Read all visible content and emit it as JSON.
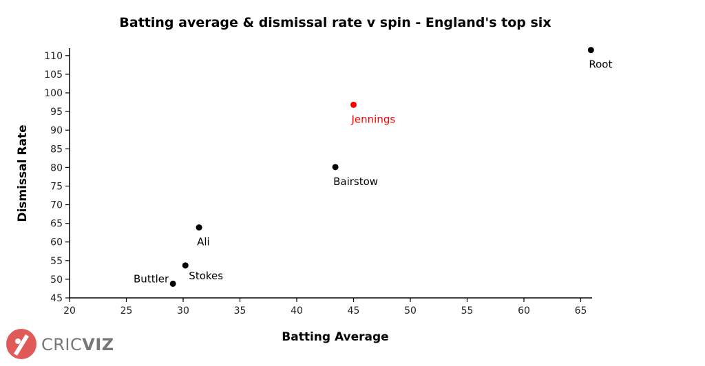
{
  "chart_data": {
    "type": "scatter",
    "title": "Batting average & dismissal rate v spin - England's top six",
    "xlabel": "Batting Average",
    "ylabel": "Dismissal Rate",
    "xlim": [
      20,
      66
    ],
    "ylim": [
      45,
      112
    ],
    "xticks": [
      20,
      25,
      30,
      35,
      40,
      45,
      50,
      55,
      60,
      65
    ],
    "yticks": [
      45,
      50,
      55,
      60,
      65,
      70,
      75,
      80,
      85,
      90,
      95,
      100,
      105,
      110
    ],
    "grid": false,
    "points": [
      {
        "label": "Root",
        "x": 65.9,
        "y": 111.5,
        "color": "#000000"
      },
      {
        "label": "Jennings",
        "x": 45.0,
        "y": 96.8,
        "color": "#ff0000"
      },
      {
        "label": "Bairstow",
        "x": 43.4,
        "y": 80.1,
        "color": "#000000"
      },
      {
        "label": "Ali",
        "x": 31.4,
        "y": 63.9,
        "color": "#000000"
      },
      {
        "label": "Stokes",
        "x": 30.2,
        "y": 53.7,
        "color": "#000000"
      },
      {
        "label": "Buttler",
        "x": 29.1,
        "y": 48.8,
        "color": "#000000"
      }
    ]
  },
  "branding": {
    "logo_part1": "CRIC",
    "logo_part2": "VIZ",
    "logo_color": "#e05a5a",
    "text_color": "#777777"
  }
}
